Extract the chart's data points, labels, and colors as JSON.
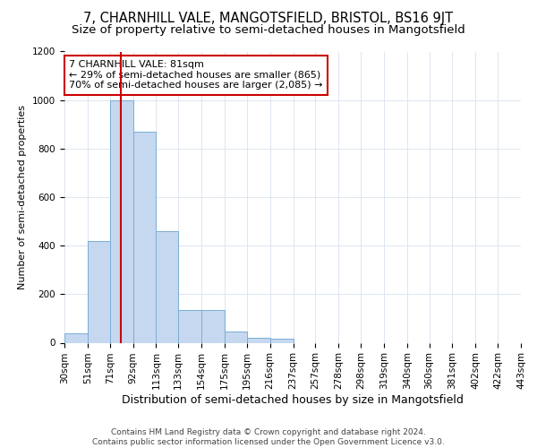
{
  "title": "7, CHARNHILL VALE, MANGOTSFIELD, BRISTOL, BS16 9JT",
  "subtitle": "Size of property relative to semi-detached houses in Mangotsfield",
  "xlabel": "Distribution of semi-detached houses by size in Mangotsfield",
  "ylabel": "Number of semi-detached properties",
  "footnote1": "Contains HM Land Registry data © Crown copyright and database right 2024.",
  "footnote2": "Contains public sector information licensed under the Open Government Licence v3.0.",
  "property_size": 81,
  "property_label": "7 CHARNHILL VALE: 81sqm",
  "pct_smaller": 29,
  "n_smaller": 865,
  "pct_larger": 70,
  "n_larger": 2085,
  "bin_edges": [
    30,
    51,
    71,
    92,
    113,
    133,
    154,
    175,
    195,
    216,
    237,
    257,
    278,
    298,
    319,
    340,
    360,
    381,
    402,
    422,
    443
  ],
  "bin_counts": [
    40,
    420,
    1000,
    870,
    460,
    135,
    135,
    45,
    20,
    15,
    0,
    0,
    0,
    0,
    0,
    0,
    0,
    0,
    0,
    0
  ],
  "bar_color": "#c5d8f0",
  "bar_edge_color": "#7aadd4",
  "red_line_color": "#cc0000",
  "annotation_box_color": "#cc0000",
  "grid_color": "#dde6f0",
  "ylim": [
    0,
    1200
  ],
  "yticks": [
    0,
    200,
    400,
    600,
    800,
    1000,
    1200
  ],
  "title_fontsize": 10.5,
  "subtitle_fontsize": 9.5,
  "xlabel_fontsize": 9,
  "ylabel_fontsize": 8,
  "tick_fontsize": 7.5,
  "annotation_fontsize": 8,
  "footnote_fontsize": 6.5
}
